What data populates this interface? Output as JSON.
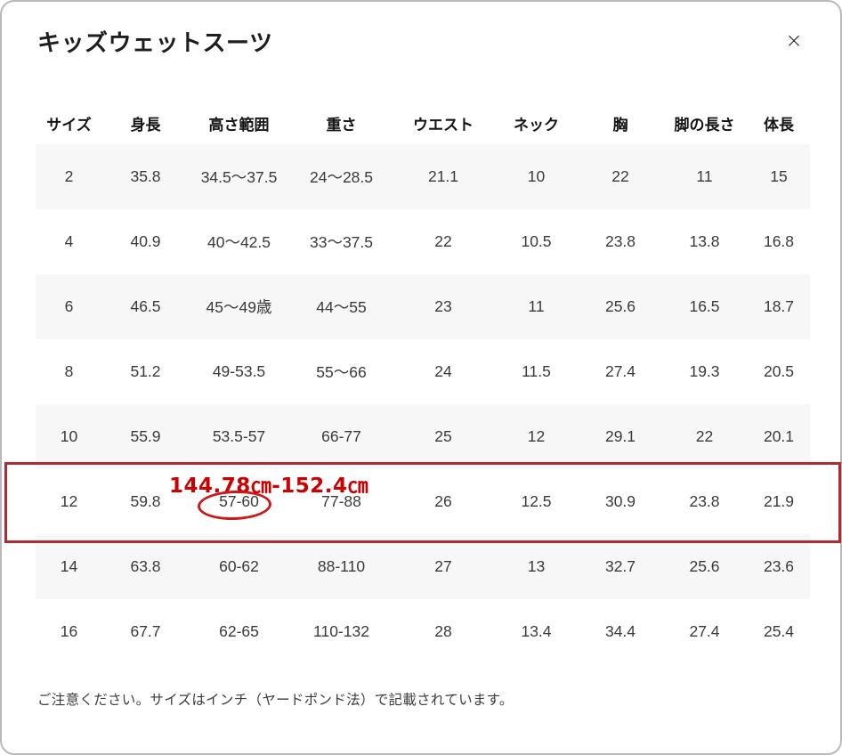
{
  "modal": {
    "title": "キッズウェットスーツ",
    "close_icon": "×"
  },
  "table": {
    "headers": [
      "サイズ",
      "身長",
      "高さ範囲",
      "重さ",
      "ウエスト",
      "ネック",
      "胸",
      "脚の長さ",
      "体長"
    ],
    "rows": [
      [
        "2",
        "35.8",
        "34.5〜37.5",
        "24〜28.5",
        "21.1",
        "10",
        "22",
        "11",
        "15"
      ],
      [
        "4",
        "40.9",
        "40〜42.5",
        "33〜37.5",
        "22",
        "10.5",
        "23.8",
        "13.8",
        "16.8"
      ],
      [
        "6",
        "46.5",
        "45〜49歳",
        "44〜55",
        "23",
        "11",
        "25.6",
        "16.5",
        "18.7"
      ],
      [
        "8",
        "51.2",
        "49-53.5",
        "55〜66",
        "24",
        "11.5",
        "27.4",
        "19.3",
        "20.5"
      ],
      [
        "10",
        "55.9",
        "53.5-57",
        "66-77",
        "25",
        "12",
        "29.1",
        "22",
        "20.1"
      ],
      [
        "12",
        "59.8",
        "57-60",
        "77-88",
        "26",
        "12.5",
        "30.9",
        "23.8",
        "21.9"
      ],
      [
        "14",
        "63.8",
        "60-62",
        "88-110",
        "27",
        "13",
        "32.7",
        "25.6",
        "23.6"
      ],
      [
        "16",
        "67.7",
        "62-65",
        "110-132",
        "28",
        "13.4",
        "34.4",
        "27.4",
        "25.4"
      ]
    ]
  },
  "annotation": {
    "range_label": "144.78㎝-152.4㎝",
    "highlighted_row_size": "12",
    "circled_cell_value": "57-60",
    "box_color": "#b22a31",
    "text_color": "#cc0000",
    "ellipse_color": "#cc1a1a"
  },
  "footer": {
    "note": "ご注意ください。サイズはインチ（ヤードポンド法）で記載されています。"
  }
}
